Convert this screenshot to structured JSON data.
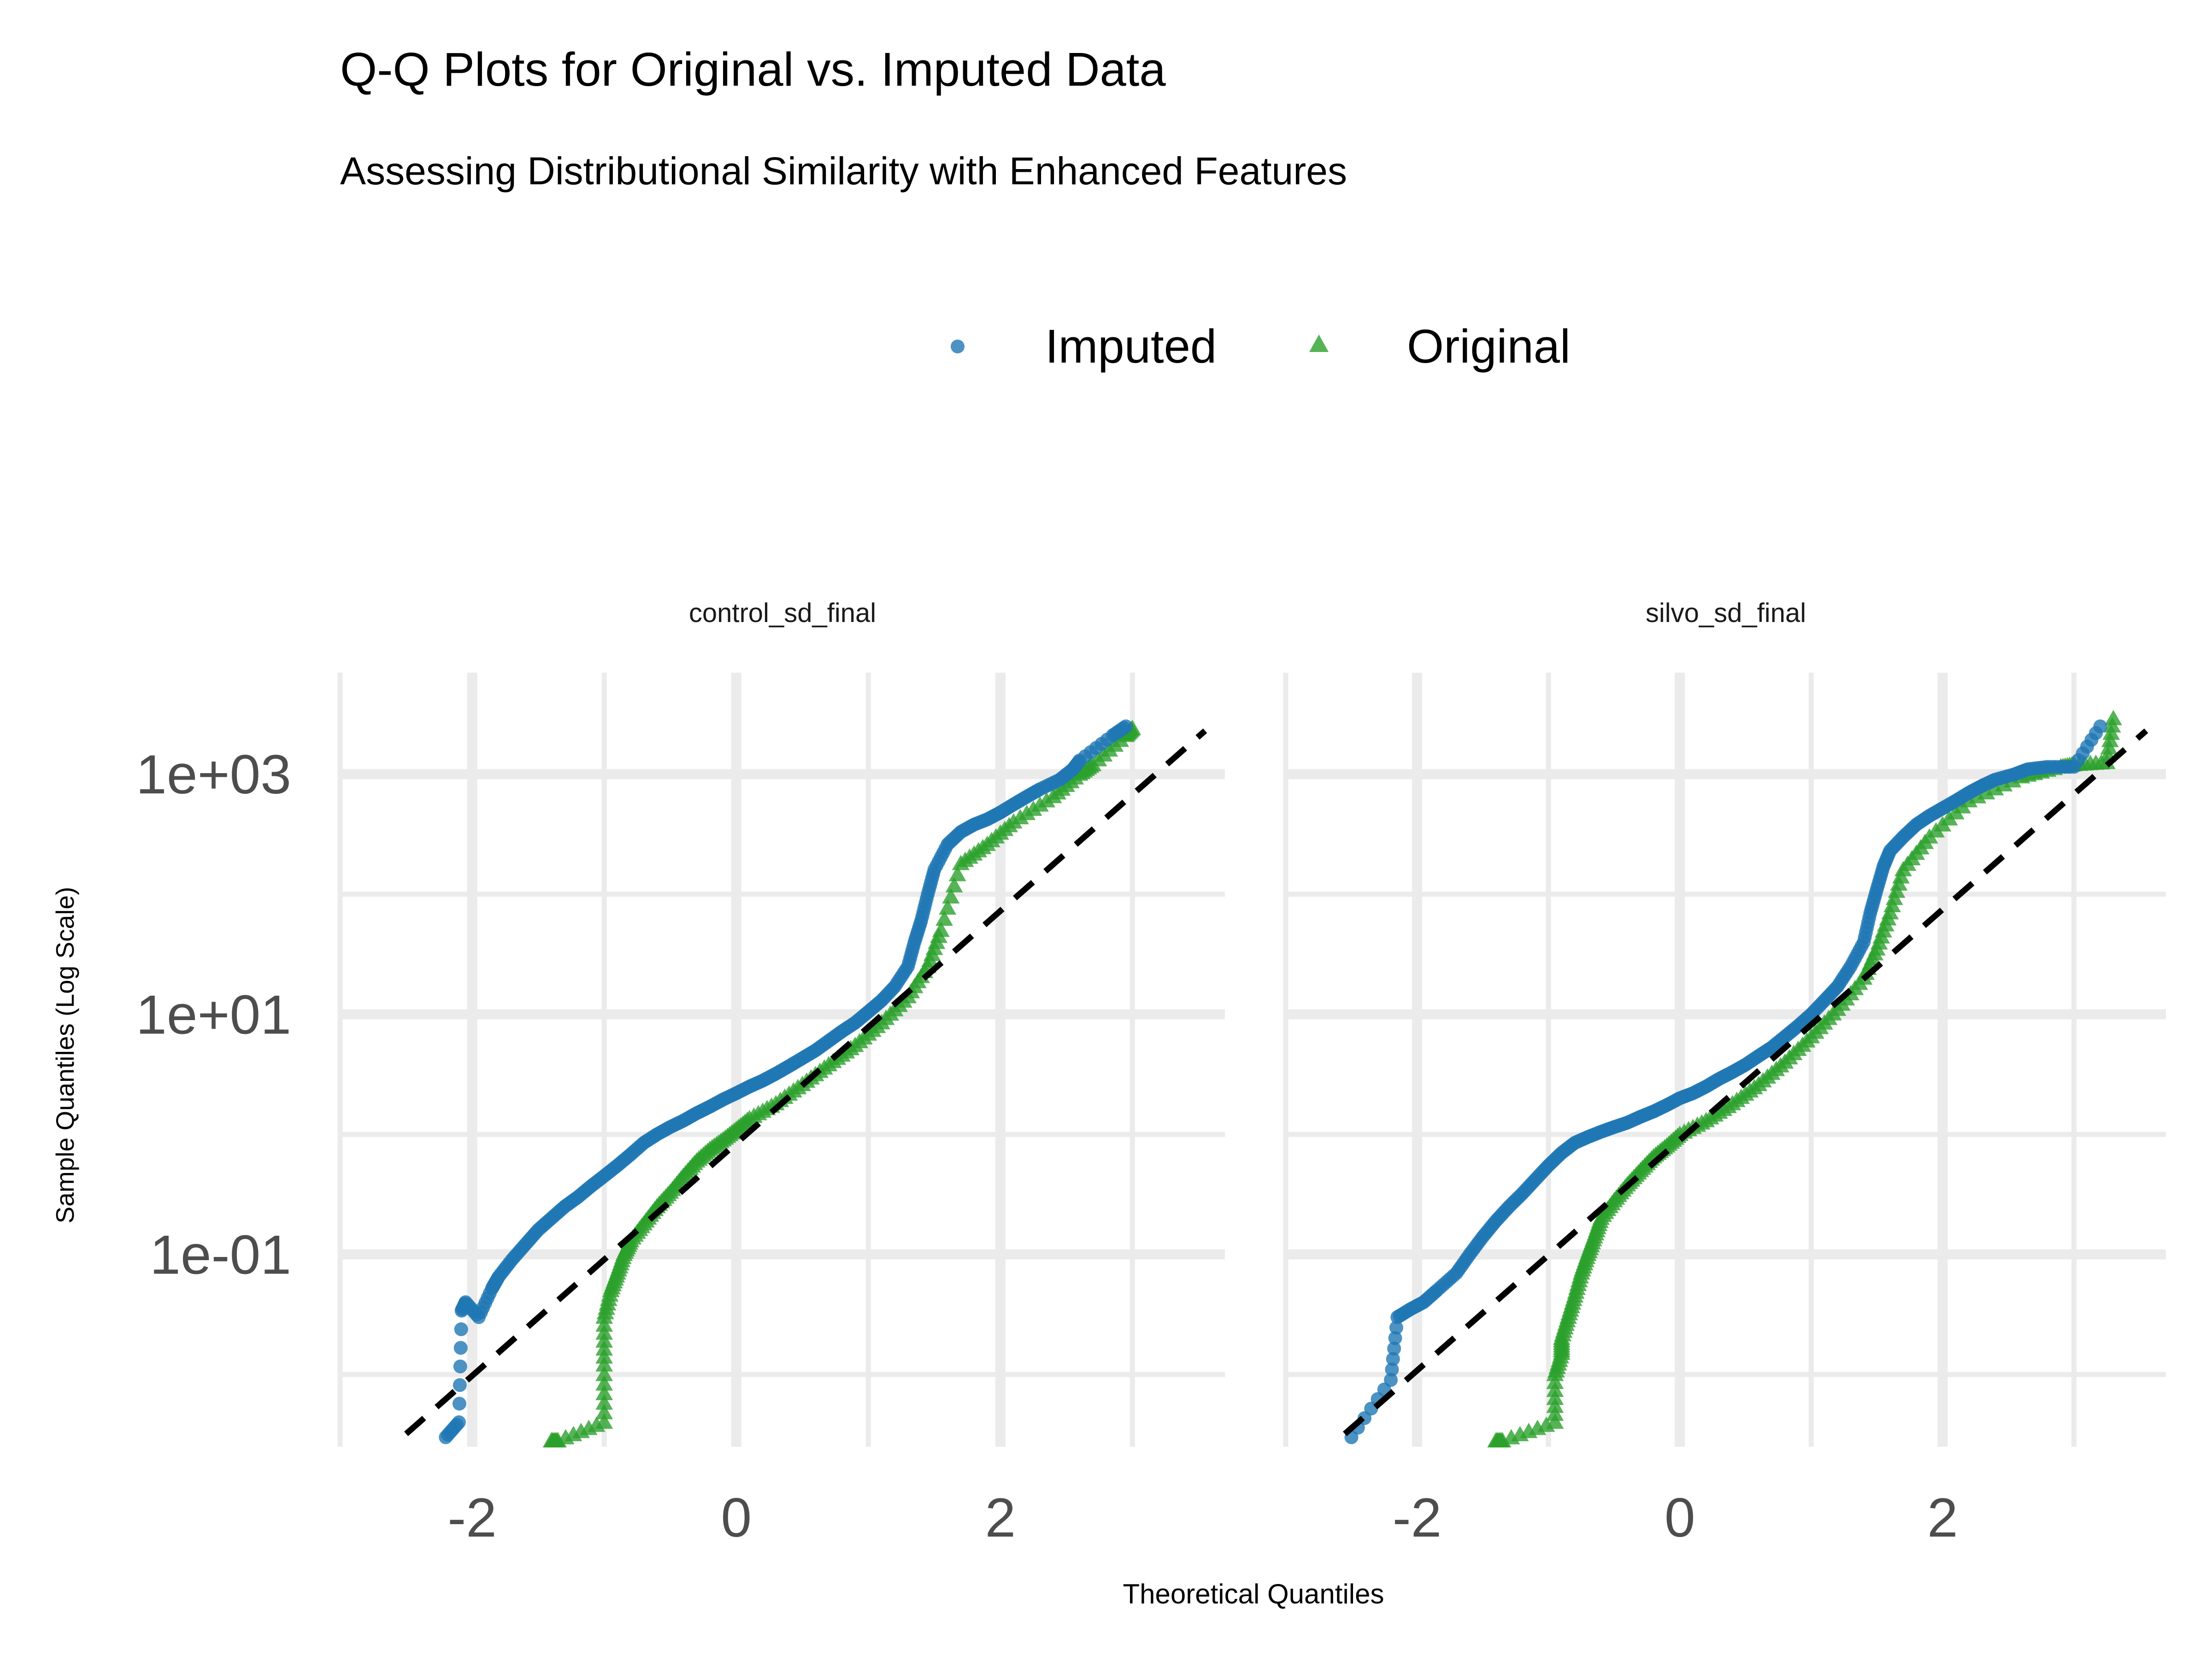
{
  "title": "Q-Q Plots for Original vs. Imputed Data",
  "subtitle": "Assessing Distributional Similarity with Enhanced Features",
  "legend": {
    "placement": "top",
    "items": [
      {
        "label": "Imputed",
        "color": "#1f77b4",
        "shape": "circle"
      },
      {
        "label": "Original",
        "color": "#2ca02c",
        "shape": "triangle"
      }
    ]
  },
  "chart_data": {
    "type": "scatter",
    "xlabel": "Theoretical Quantiles",
    "ylabel": "Sample Quantiles (Log Scale)",
    "x_ticks": [
      "-2",
      "0",
      "2"
    ],
    "y_ticks": [
      "1e-01",
      "1e+01",
      "1e+03"
    ],
    "y_scale": "log10",
    "grid": true,
    "reference_line": {
      "style": "dashed",
      "color": "#000000"
    },
    "panels": [
      {
        "title": "control_sd_final",
        "xlim": [
          -3.0,
          3.7
        ],
        "ylim": [
          0.0025,
          7000
        ],
        "reference": {
          "x0": -2.5,
          "y0": 0.0032,
          "x1": 3.55,
          "y1": 2300
        },
        "series": [
          {
            "name": "Imputed",
            "points": [
              [
                -2.2,
                0.003
              ],
              [
                -2.1,
                0.004
              ],
              [
                -2.08,
                0.034
              ],
              [
                -2.05,
                0.04
              ],
              [
                -1.95,
                0.03
              ],
              [
                -1.85,
                0.052
              ],
              [
                -1.8,
                0.065
              ],
              [
                -1.7,
                0.09
              ],
              [
                -1.6,
                0.12
              ],
              [
                -1.5,
                0.16
              ],
              [
                -1.4,
                0.2
              ],
              [
                -1.3,
                0.25
              ],
              [
                -1.2,
                0.3
              ],
              [
                -1.1,
                0.37
              ],
              [
                -1.0,
                0.45
              ],
              [
                -0.9,
                0.55
              ],
              [
                -0.8,
                0.68
              ],
              [
                -0.7,
                0.85
              ],
              [
                -0.6,
                1.0
              ],
              [
                -0.5,
                1.15
              ],
              [
                -0.4,
                1.3
              ],
              [
                -0.3,
                1.5
              ],
              [
                -0.2,
                1.7
              ],
              [
                -0.1,
                1.95
              ],
              [
                0.0,
                2.2
              ],
              [
                0.1,
                2.5
              ],
              [
                0.2,
                2.8
              ],
              [
                0.3,
                3.2
              ],
              [
                0.4,
                3.7
              ],
              [
                0.5,
                4.3
              ],
              [
                0.6,
                5.0
              ],
              [
                0.7,
                6.0
              ],
              [
                0.8,
                7.2
              ],
              [
                0.9,
                8.5
              ],
              [
                1.0,
                10.5
              ],
              [
                1.1,
                13
              ],
              [
                1.2,
                17
              ],
              [
                1.3,
                25
              ],
              [
                1.35,
                40
              ],
              [
                1.4,
                60
              ],
              [
                1.45,
                100
              ],
              [
                1.5,
                160
              ],
              [
                1.6,
                260
              ],
              [
                1.7,
                330
              ],
              [
                1.8,
                380
              ],
              [
                1.9,
                420
              ],
              [
                2.0,
                480
              ],
              [
                2.1,
                560
              ],
              [
                2.2,
                650
              ],
              [
                2.3,
                750
              ],
              [
                2.45,
                900
              ],
              [
                2.55,
                1100
              ],
              [
                2.6,
                1300
              ],
              [
                2.85,
                2100
              ],
              [
                2.95,
                2500
              ]
            ]
          },
          {
            "name": "Original",
            "points": [
              [
                -1.4,
                0.0028
              ],
              [
                -1.35,
                0.0028
              ],
              [
                -1.0,
                0.004
              ],
              [
                -1.0,
                0.012
              ],
              [
                -1.0,
                0.03
              ],
              [
                -0.95,
                0.05
              ],
              [
                -0.9,
                0.07
              ],
              [
                -0.85,
                0.1
              ],
              [
                -0.8,
                0.13
              ],
              [
                -0.7,
                0.18
              ],
              [
                -0.6,
                0.25
              ],
              [
                -0.5,
                0.33
              ],
              [
                -0.4,
                0.45
              ],
              [
                -0.3,
                0.6
              ],
              [
                -0.2,
                0.75
              ],
              [
                -0.1,
                0.9
              ],
              [
                0.0,
                1.1
              ],
              [
                0.1,
                1.35
              ],
              [
                0.3,
                1.8
              ],
              [
                0.5,
                2.6
              ],
              [
                0.7,
                3.8
              ],
              [
                0.9,
                5.5
              ],
              [
                1.1,
                8.5
              ],
              [
                1.3,
                14
              ],
              [
                1.45,
                25
              ],
              [
                1.55,
                50
              ],
              [
                1.7,
                180
              ],
              [
                1.9,
                260
              ],
              [
                2.1,
                400
              ],
              [
                2.4,
                650
              ],
              [
                2.6,
                1000
              ],
              [
                2.7,
                1200
              ],
              [
                2.95,
                2100
              ],
              [
                3.0,
                2400
              ]
            ]
          }
        ]
      },
      {
        "title": "silvo_sd_final",
        "xlim": [
          -3.0,
          3.7
        ],
        "ylim": [
          0.0025,
          7000
        ],
        "reference": {
          "x0": -2.55,
          "y0": 0.0032,
          "x1": 3.55,
          "y1": 2300
        },
        "series": [
          {
            "name": "Imputed",
            "points": [
              [
                -2.5,
                0.003
              ],
              [
                -2.2,
                0.009
              ],
              [
                -2.15,
                0.03
              ],
              [
                -2.05,
                0.035
              ],
              [
                -1.95,
                0.04
              ],
              [
                -1.85,
                0.05
              ],
              [
                -1.7,
                0.07
              ],
              [
                -1.6,
                0.1
              ],
              [
                -1.5,
                0.14
              ],
              [
                -1.4,
                0.19
              ],
              [
                -1.3,
                0.25
              ],
              [
                -1.2,
                0.32
              ],
              [
                -1.1,
                0.42
              ],
              [
                -1.0,
                0.55
              ],
              [
                -0.9,
                0.7
              ],
              [
                -0.8,
                0.85
              ],
              [
                -0.7,
                0.95
              ],
              [
                -0.6,
                1.05
              ],
              [
                -0.5,
                1.15
              ],
              [
                -0.4,
                1.25
              ],
              [
                -0.3,
                1.4
              ],
              [
                -0.2,
                1.55
              ],
              [
                -0.1,
                1.75
              ],
              [
                0.0,
                2.0
              ],
              [
                0.1,
                2.2
              ],
              [
                0.2,
                2.5
              ],
              [
                0.3,
                2.9
              ],
              [
                0.4,
                3.3
              ],
              [
                0.5,
                3.8
              ],
              [
                0.6,
                4.5
              ],
              [
                0.7,
                5.3
              ],
              [
                0.8,
                6.5
              ],
              [
                0.9,
                8.0
              ],
              [
                1.0,
                10
              ],
              [
                1.1,
                13
              ],
              [
                1.2,
                17
              ],
              [
                1.3,
                25
              ],
              [
                1.4,
                40
              ],
              [
                1.45,
                70
              ],
              [
                1.5,
                110
              ],
              [
                1.55,
                170
              ],
              [
                1.6,
                230
              ],
              [
                1.7,
                300
              ],
              [
                1.8,
                380
              ],
              [
                1.9,
                450
              ],
              [
                2.0,
                520
              ],
              [
                2.1,
                600
              ],
              [
                2.2,
                700
              ],
              [
                2.3,
                800
              ],
              [
                2.4,
                900
              ],
              [
                2.55,
                1000
              ],
              [
                2.65,
                1100
              ],
              [
                2.8,
                1150
              ],
              [
                3.0,
                1150
              ],
              [
                3.2,
                2500
              ]
            ]
          },
          {
            "name": "Original",
            "points": [
              [
                -1.4,
                0.0028
              ],
              [
                -1.35,
                0.0028
              ],
              [
                -0.95,
                0.004
              ],
              [
                -0.95,
                0.01
              ],
              [
                -0.9,
                0.015
              ],
              [
                -0.9,
                0.02
              ],
              [
                -0.85,
                0.03
              ],
              [
                -0.8,
                0.045
              ],
              [
                -0.75,
                0.07
              ],
              [
                -0.7,
                0.1
              ],
              [
                -0.65,
                0.14
              ],
              [
                -0.6,
                0.2
              ],
              [
                -0.5,
                0.28
              ],
              [
                -0.4,
                0.38
              ],
              [
                -0.3,
                0.5
              ],
              [
                -0.2,
                0.65
              ],
              [
                -0.1,
                0.8
              ],
              [
                0.0,
                1.0
              ],
              [
                0.2,
                1.3
              ],
              [
                0.4,
                1.8
              ],
              [
                0.6,
                2.6
              ],
              [
                0.8,
                4.0
              ],
              [
                1.0,
                6.5
              ],
              [
                1.2,
                11
              ],
              [
                1.4,
                20
              ],
              [
                1.5,
                35
              ],
              [
                1.6,
                70
              ],
              [
                1.7,
                160
              ],
              [
                1.9,
                300
              ],
              [
                2.2,
                600
              ],
              [
                2.6,
                950
              ],
              [
                2.9,
                1150
              ],
              [
                3.0,
                1200
              ],
              [
                3.25,
                1250
              ],
              [
                3.3,
                2900
              ]
            ]
          }
        ]
      }
    ]
  }
}
